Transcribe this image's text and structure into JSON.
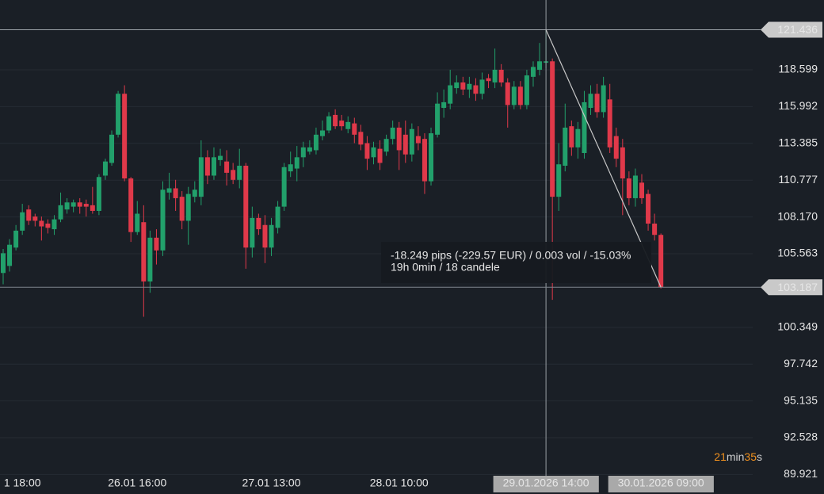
{
  "chart_data": {
    "type": "candlestick",
    "categories": [
      null,
      null,
      null,
      "1 18:00",
      null,
      null,
      null,
      null,
      null,
      null,
      null,
      null,
      null,
      null,
      null,
      null,
      null,
      null,
      null,
      null,
      null,
      "26.01 16:00",
      null,
      null,
      null,
      null,
      null,
      null,
      null,
      null,
      null,
      null,
      null,
      null,
      null,
      null,
      null,
      null,
      null,
      null,
      null,
      null,
      "27.01 13:00",
      null,
      null,
      null,
      null,
      null,
      null,
      null,
      null,
      null,
      null,
      null,
      null,
      null,
      null,
      null,
      null,
      null,
      null,
      null,
      "28.01 10:00",
      null,
      null,
      null,
      null,
      null,
      null,
      null,
      null,
      null,
      null,
      null,
      null,
      null,
      null,
      null,
      null,
      null,
      null,
      null,
      null,
      null,
      null,
      "29.01.2026 14:00",
      null,
      null,
      null,
      null,
      null,
      null,
      null,
      null,
      null,
      null,
      null,
      null,
      null,
      null,
      null,
      null,
      null,
      "30.01.2026 09:00"
    ],
    "open": [
      104.2,
      104.7,
      106.0,
      107.2,
      108.7,
      108.2,
      107.9,
      107.7,
      107.3,
      108.0,
      108.7,
      108.9,
      109.2,
      109.1,
      109.0,
      108.6,
      111.1,
      112.0,
      114.0,
      116.9,
      110.9,
      107.1,
      107.8,
      103.6,
      106.7,
      105.8,
      109.9,
      110.2,
      109.6,
      107.9,
      109.6,
      109.6,
      112.4,
      111.1,
      112.2,
      112.1,
      111.5,
      110.8,
      111.8,
      106.0,
      108.1,
      107.6,
      106.0,
      107.4,
      108.9,
      111.4,
      111.6,
      112.4,
      112.8,
      112.9,
      113.9,
      114.3,
      115.4,
      115.0,
      114.4,
      114.8,
      114.2,
      113.4,
      112.4,
      113.0,
      112.8,
      113.7,
      114.5,
      114.0,
      112.6,
      113.9,
      113.7,
      110.7,
      114.0,
      115.9,
      116.2,
      117.3,
      117.7,
      117.2,
      117.5,
      116.9,
      118.0,
      117.7,
      118.6,
      117.7,
      116.1,
      117.4,
      116.1,
      118.1,
      118.6,
      119.1,
      119.2,
      109.6,
      111.8,
      114.6,
      113.1,
      112.7,
      115.9,
      116.9,
      115.6,
      116.5,
      113.9,
      113.1,
      110.9,
      109.5,
      110.6,
      109.8,
      107.7,
      106.9
    ],
    "high": [
      105.9,
      106.6,
      107.6,
      109.1,
      109.0,
      108.4,
      108.2,
      108.0,
      108.3,
      109.9,
      109.5,
      109.4,
      109.5,
      109.4,
      110.3,
      111.2,
      112.3,
      114.3,
      117.1,
      117.5,
      111.0,
      109.3,
      109.0,
      107.2,
      107.3,
      110.7,
      111.3,
      110.8,
      110.0,
      110.3,
      110.7,
      113.6,
      112.9,
      113.1,
      113.0,
      112.9,
      112.0,
      113.0,
      112.0,
      108.9,
      108.4,
      108.3,
      108.1,
      109.3,
      112.0,
      112.8,
      113.2,
      113.5,
      113.6,
      114.5,
      115.0,
      115.6,
      115.8,
      115.4,
      115.3,
      115.2,
      114.7,
      113.9,
      113.5,
      113.6,
      114.0,
      115.0,
      114.9,
      115.0,
      114.8,
      114.6,
      114.1,
      114.5,
      117.0,
      117.2,
      118.6,
      118.2,
      118.1,
      118.1,
      118.0,
      118.4,
      118.3,
      120.1,
      119.0,
      118.0,
      117.8,
      117.8,
      118.6,
      119.2,
      120.5,
      121.436,
      119.4,
      113.4,
      116.2,
      115.0,
      114.9,
      117.1,
      117.5,
      117.6,
      118.1,
      117.6,
      114.5,
      113.7,
      111.4,
      111.6,
      111.2,
      110.1,
      108.4,
      107.0
    ],
    "low": [
      103.4,
      104.3,
      105.8,
      106.9,
      107.6,
      107.5,
      106.5,
      107.0,
      106.9,
      107.8,
      108.4,
      108.5,
      108.4,
      108.2,
      108.4,
      108.3,
      110.8,
      111.8,
      113.8,
      110.7,
      106.4,
      106.9,
      101.1,
      102.8,
      104.8,
      105.4,
      109.4,
      108.6,
      107.3,
      106.2,
      109.2,
      109.0,
      110.5,
      110.8,
      111.8,
      110.4,
      110.5,
      110.2,
      104.5,
      105.3,
      106.9,
      104.9,
      105.4,
      107.0,
      108.6,
      111.0,
      110.7,
      111.7,
      112.6,
      112.6,
      113.6,
      114.1,
      114.4,
      114.3,
      114.1,
      113.4,
      112.9,
      111.5,
      111.9,
      111.5,
      112.5,
      113.3,
      111.5,
      112.0,
      112.1,
      112.9,
      109.8,
      110.4,
      113.8,
      115.2,
      115.8,
      116.9,
      116.8,
      116.6,
      116.4,
      116.5,
      117.3,
      117.3,
      117.4,
      114.5,
      115.8,
      115.8,
      115.8,
      117.4,
      118.2,
      118.7,
      102.3,
      108.6,
      111.4,
      112.5,
      112.3,
      112.3,
      115.4,
      115.2,
      115.2,
      112.7,
      111.7,
      108.3,
      109.0,
      108.9,
      109.1,
      107.2,
      106.5,
      103.1
    ],
    "close": [
      105.6,
      106.2,
      107.2,
      108.5,
      107.9,
      107.9,
      107.5,
      107.4,
      108.0,
      109.0,
      109.2,
      109.2,
      108.9,
      108.9,
      108.6,
      111.0,
      112.1,
      114.0,
      116.9,
      110.9,
      107.1,
      108.4,
      103.6,
      106.7,
      105.8,
      110.1,
      110.2,
      109.5,
      107.9,
      109.8,
      110.1,
      112.4,
      111.1,
      112.4,
      112.5,
      111.3,
      110.8,
      111.8,
      106.0,
      108.1,
      107.3,
      106.0,
      107.6,
      108.9,
      111.7,
      111.9,
      112.4,
      113.1,
      113.1,
      114.0,
      114.3,
      115.3,
      114.6,
      114.6,
      114.9,
      114.0,
      113.3,
      112.3,
      113.1,
      112.0,
      113.7,
      114.5,
      112.9,
      112.6,
      114.4,
      113.4,
      110.7,
      114.1,
      116.2,
      116.3,
      117.5,
      117.7,
      117.2,
      117.6,
      116.9,
      117.9,
      117.8,
      118.6,
      117.7,
      116.1,
      117.4,
      116.1,
      118.2,
      118.8,
      119.2,
      119.2,
      109.6,
      111.9,
      114.5,
      113.1,
      114.4,
      116.3,
      116.9,
      115.6,
      117.5,
      113.1,
      112.3,
      110.9,
      109.5,
      111.1,
      109.5,
      107.7,
      106.9,
      103.187
    ],
    "up_color": "#22a06b",
    "down_color": "#e0394a",
    "ylim": [
      89.832,
      123.543
    ],
    "yticks": [
      118.599,
      115.992,
      113.385,
      110.777,
      {
        "value": 108.17,
        "label": "108.170"
      },
      105.563,
      100.349,
      97.742,
      95.135,
      92.528,
      89.921
    ],
    "grid": true,
    "measure": {
      "from_price": 121.436,
      "to_price": 103.187,
      "lines": [
        "-18.249 pips (-229.57 EUR) / 0.003 vol / -15.03%",
        "19h 0min / 18 candele"
      ]
    },
    "countdown": {
      "minutes": 21,
      "minutes_unit": "min",
      "seconds": 35,
      "seconds_unit": "s"
    }
  }
}
